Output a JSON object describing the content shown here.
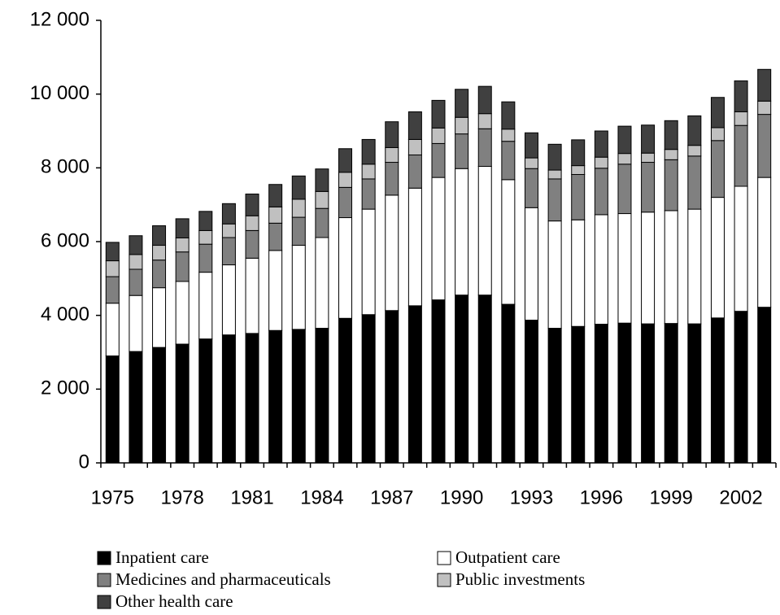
{
  "chart_data": {
    "type": "stacked-bar",
    "categories": [
      "1975",
      null,
      null,
      "1978",
      null,
      null,
      "1981",
      null,
      null,
      "1984",
      null,
      null,
      "1987",
      null,
      null,
      "1990",
      null,
      null,
      "1993",
      null,
      null,
      "1996",
      null,
      null,
      "1999",
      null,
      null,
      "2002",
      null
    ],
    "series": [
      {
        "name": "Inpatient care",
        "color": "#000000",
        "values": [
          2900,
          3020,
          3130,
          3220,
          3360,
          3470,
          3510,
          3590,
          3620,
          3650,
          3920,
          4020,
          4130,
          4260,
          4420,
          4550,
          4550,
          4300,
          3870,
          3650,
          3700,
          3760,
          3790,
          3770,
          3780,
          3770,
          3930,
          4110,
          4220
        ]
      },
      {
        "name": "Outpatient care",
        "color": "#ffffff",
        "values": [
          1430,
          1520,
          1620,
          1700,
          1810,
          1900,
          2040,
          2170,
          2280,
          2460,
          2730,
          2860,
          3130,
          3190,
          3320,
          3430,
          3490,
          3380,
          3050,
          2910,
          2890,
          2970,
          2970,
          3030,
          3060,
          3110,
          3270,
          3390,
          3520
        ]
      },
      {
        "name": "Medicines and pharmaceuticals",
        "color": "#808080",
        "values": [
          720,
          710,
          750,
          800,
          760,
          740,
          750,
          740,
          760,
          790,
          820,
          820,
          890,
          900,
          920,
          940,
          1020,
          1040,
          1060,
          1140,
          1230,
          1260,
          1340,
          1350,
          1380,
          1440,
          1540,
          1650,
          1710
        ]
      },
      {
        "name": "Public investments",
        "color": "#c0c0c0",
        "values": [
          430,
          400,
          400,
          380,
          370,
          370,
          400,
          440,
          490,
          460,
          410,
          400,
          400,
          420,
          420,
          450,
          410,
          330,
          290,
          240,
          240,
          300,
          290,
          250,
          280,
          290,
          350,
          370,
          360
        ]
      },
      {
        "name": "Other health care",
        "color": "#404040",
        "values": [
          500,
          510,
          530,
          520,
          520,
          550,
          590,
          610,
          630,
          610,
          640,
          670,
          700,
          750,
          750,
          760,
          740,
          740,
          680,
          700,
          700,
          710,
          740,
          760,
          780,
          800,
          820,
          840,
          860
        ]
      }
    ],
    "ylim": [
      0,
      12000
    ],
    "yticks": [
      0,
      {
        "value": 2000,
        "label": "2 000"
      },
      {
        "value": 4000,
        "label": "4 000"
      },
      {
        "value": 6000,
        "label": "6 000"
      },
      {
        "value": 8000,
        "label": "8 000"
      },
      {
        "value": 10000,
        "label": "10 000"
      },
      {
        "value": 12000,
        "label": "12 000"
      }
    ],
    "grid": false,
    "legend": "bottom"
  }
}
